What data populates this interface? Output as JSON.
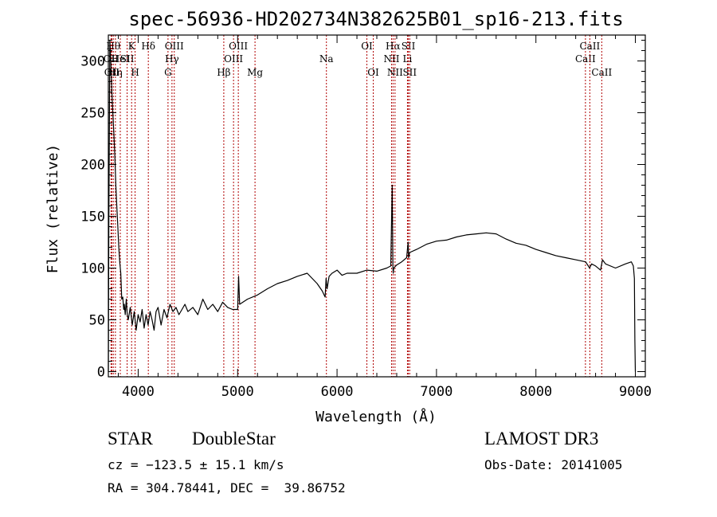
{
  "chart_data": {
    "type": "line",
    "title": "spec-56936-HD202734N382625B01_sp16-213.fits",
    "xlabel": "Wavelength (Å)",
    "ylabel": "Flux (relative)",
    "xlim": [
      3700,
      9100
    ],
    "ylim": [
      -5,
      325
    ],
    "xticks": [
      4000,
      5000,
      6000,
      7000,
      8000,
      9000
    ],
    "yticks": [
      0,
      50,
      100,
      150,
      200,
      250,
      300
    ],
    "series": [
      {
        "name": "spectrum",
        "x": [
          3700,
          3705,
          3715,
          3725,
          3735,
          3745,
          3755,
          3765,
          3775,
          3785,
          3795,
          3805,
          3815,
          3825,
          3835,
          3845,
          3855,
          3860,
          3870,
          3880,
          3890,
          3900,
          3920,
          3940,
          3960,
          3980,
          4000,
          4020,
          4040,
          4060,
          4080,
          4100,
          4120,
          4140,
          4160,
          4180,
          4200,
          4230,
          4260,
          4290,
          4320,
          4350,
          4380,
          4410,
          4440,
          4470,
          4500,
          4550,
          4600,
          4650,
          4700,
          4750,
          4800,
          4850,
          4900,
          4950,
          5000,
          5010,
          5020,
          5100,
          5200,
          5300,
          5400,
          5500,
          5600,
          5700,
          5800,
          5850,
          5880,
          5890,
          5900,
          5920,
          5950,
          6000,
          6050,
          6100,
          6200,
          6300,
          6400,
          6500,
          6540,
          6555,
          6562,
          6565,
          6570,
          6600,
          6650,
          6700,
          6715,
          6720,
          6730,
          6800,
          6900,
          7000,
          7100,
          7200,
          7300,
          7400,
          7500,
          7600,
          7700,
          7800,
          7900,
          8000,
          8100,
          8200,
          8300,
          8400,
          8500,
          8540,
          8560,
          8600,
          8650,
          8670,
          8700,
          8800,
          8900,
          8960,
          8980,
          8990,
          8995,
          9000
        ],
        "y": [
          0,
          140,
          320,
          300,
          270,
          250,
          230,
          210,
          180,
          160,
          140,
          120,
          105,
          95,
          70,
          72,
          60,
          65,
          55,
          70,
          55,
          50,
          62,
          45,
          58,
          40,
          55,
          48,
          60,
          42,
          55,
          45,
          58,
          50,
          40,
          58,
          62,
          45,
          60,
          52,
          65,
          58,
          62,
          55,
          60,
          65,
          58,
          62,
          55,
          70,
          60,
          65,
          58,
          67,
          62,
          60,
          60,
          92,
          65,
          70,
          74,
          80,
          85,
          88,
          92,
          95,
          85,
          78,
          72,
          90,
          80,
          92,
          95,
          98,
          93,
          95,
          95,
          98,
          97,
          100,
          102,
          180,
          100,
          95,
          100,
          103,
          106,
          110,
          125,
          110,
          115,
          118,
          123,
          126,
          127,
          130,
          132,
          133,
          134,
          133,
          128,
          124,
          122,
          118,
          115,
          112,
          110,
          108,
          106,
          100,
          104,
          102,
          98,
          108,
          104,
          100,
          104,
          106,
          102,
          90,
          30,
          0
        ]
      }
    ],
    "line_markers": [
      {
        "wl": 3750,
        "label": "Hθ",
        "row": 1
      },
      {
        "wl": 3727,
        "label": "OII",
        "row": 2
      },
      {
        "wl": 3735,
        "label": "OII",
        "row": 3
      },
      {
        "wl": 3771,
        "label": "Hη",
        "row": 3
      },
      {
        "wl": 3820,
        "label": "HeI",
        "row": 2
      },
      {
        "wl": 3889,
        "label": "SII",
        "row": 2
      },
      {
        "wl": 3934,
        "label": "K",
        "row": 1
      },
      {
        "wl": 3969,
        "label": "H",
        "row": 3
      },
      {
        "wl": 4102,
        "label": "Hδ",
        "row": 1
      },
      {
        "wl": 4300,
        "label": "G",
        "row": 3
      },
      {
        "wl": 4340,
        "label": "Hγ",
        "row": 2
      },
      {
        "wl": 4363,
        "label": "OIII",
        "row": 1
      },
      {
        "wl": 4861,
        "label": "Hβ",
        "row": 3
      },
      {
        "wl": 4959,
        "label": "OIII",
        "row": 2
      },
      {
        "wl": 5007,
        "label": "OIII",
        "row": 1
      },
      {
        "wl": 5175,
        "label": "Mg",
        "row": 3
      },
      {
        "wl": 5893,
        "label": "Na",
        "row": 2
      },
      {
        "wl": 6300,
        "label": "OI",
        "row": 1
      },
      {
        "wl": 6364,
        "label": "OI",
        "row": 3
      },
      {
        "wl": 6548,
        "label": "NII",
        "row": 2
      },
      {
        "wl": 6563,
        "label": "Hα",
        "row": 1
      },
      {
        "wl": 6583,
        "label": "NII",
        "row": 3
      },
      {
        "wl": 6708,
        "label": "Li",
        "row": 2
      },
      {
        "wl": 6717,
        "label": "SII",
        "row": 1
      },
      {
        "wl": 6731,
        "label": "SII",
        "row": 3
      },
      {
        "wl": 8498,
        "label": "CaII",
        "row": 2
      },
      {
        "wl": 8542,
        "label": "CaII",
        "row": 1
      },
      {
        "wl": 8662,
        "label": "CaII",
        "row": 3
      }
    ]
  },
  "footer": {
    "class_label": "STAR",
    "subclass_label": "DoubleStar",
    "survey_label": "LAMOST DR3",
    "cz_text": "cz = −123.5 ± 15.1 km/s",
    "obsdate_text": "Obs-Date: 20141005",
    "radec_text": "RA = 304.78441, DEC =  39.86752"
  },
  "colors": {
    "spectrum": "#000000",
    "marker": "#b00000",
    "frame": "#000000"
  }
}
